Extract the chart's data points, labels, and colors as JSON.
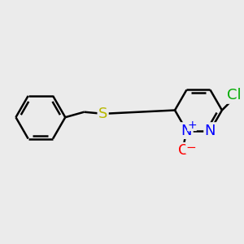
{
  "background_color": "#ebebeb",
  "bond_color": "#000000",
  "bond_width": 1.8,
  "dbo": 0.055,
  "atom_colors": {
    "S": "#b8b800",
    "N": "#0000ff",
    "Cl": "#00aa00",
    "O": "#ff0000"
  },
  "font_size": 13
}
